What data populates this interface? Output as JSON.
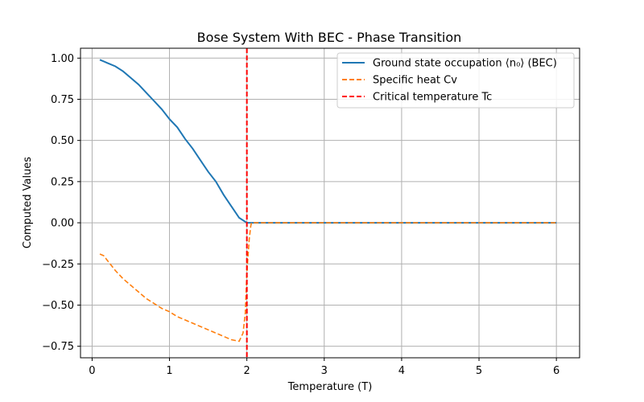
{
  "chart_data": {
    "type": "line",
    "title": "Bose System With BEC - Phase Transition",
    "xlabel": "Temperature (T)",
    "ylabel": "Computed Values",
    "xlim": [
      -0.15,
      6.3
    ],
    "ylim": [
      -0.82,
      1.06
    ],
    "xticks": [
      0,
      1,
      2,
      3,
      4,
      5,
      6
    ],
    "yticks": [
      -0.75,
      -0.5,
      -0.25,
      0.0,
      0.25,
      0.5,
      0.75,
      1.0
    ],
    "xtick_labels": [
      "0",
      "1",
      "2",
      "3",
      "4",
      "5",
      "6"
    ],
    "ytick_labels": [
      "−0.75",
      "−0.50",
      "−0.25",
      "0.00",
      "0.25",
      "0.50",
      "0.75",
      "1.00"
    ],
    "grid": true,
    "legend_position": "upper-right",
    "series": [
      {
        "name": "Ground state occupation ⟨n₀⟩ (BEC)",
        "style": "solid",
        "color": "#1f77b4",
        "x": [
          0.1,
          0.2,
          0.3,
          0.4,
          0.5,
          0.6,
          0.7,
          0.8,
          0.9,
          1.0,
          1.1,
          1.2,
          1.3,
          1.4,
          1.5,
          1.6,
          1.7,
          1.8,
          1.9,
          2.0,
          2.05,
          3.0,
          4.0,
          5.0,
          6.0
        ],
        "y": [
          0.99,
          0.97,
          0.95,
          0.92,
          0.88,
          0.84,
          0.79,
          0.74,
          0.69,
          0.63,
          0.58,
          0.51,
          0.45,
          0.38,
          0.31,
          0.25,
          0.17,
          0.1,
          0.03,
          0.0,
          0.0,
          0.0,
          0.0,
          0.0,
          0.0
        ]
      },
      {
        "name": "Specific heat Cv",
        "style": "dashed",
        "color": "#ff7f0e",
        "x": [
          0.1,
          0.15,
          0.2,
          0.3,
          0.4,
          0.5,
          0.6,
          0.7,
          0.8,
          0.9,
          1.0,
          1.1,
          1.2,
          1.3,
          1.4,
          1.5,
          1.6,
          1.7,
          1.8,
          1.9,
          1.95,
          1.98,
          2.0,
          2.03,
          2.05,
          2.06,
          3.0,
          4.0,
          5.0,
          6.0
        ],
        "y": [
          -0.19,
          -0.2,
          -0.23,
          -0.29,
          -0.34,
          -0.38,
          -0.42,
          -0.46,
          -0.49,
          -0.52,
          -0.54,
          -0.57,
          -0.59,
          -0.61,
          -0.63,
          -0.65,
          -0.67,
          -0.69,
          -0.71,
          -0.72,
          -0.67,
          -0.55,
          -0.3,
          -0.1,
          -0.02,
          0.0,
          0.0,
          0.0,
          0.0,
          0.0
        ]
      },
      {
        "name": "Critical temperature Tc",
        "style": "dashed",
        "color": "#ff0000",
        "vline_x": 2.0
      }
    ]
  }
}
